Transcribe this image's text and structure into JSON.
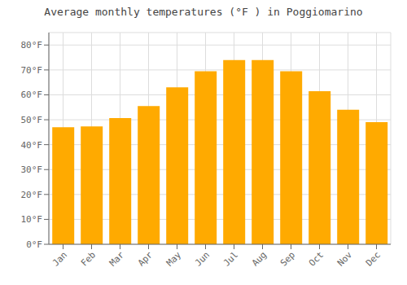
{
  "chart_data": {
    "type": "bar",
    "title": "Average monthly temperatures (°F ) in Poggiomarino",
    "categories": [
      "Jan",
      "Feb",
      "Mar",
      "Apr",
      "May",
      "Jun",
      "Jul",
      "Aug",
      "Sep",
      "Oct",
      "Nov",
      "Dec"
    ],
    "values": [
      47,
      47.3,
      50.7,
      55.5,
      63,
      69.5,
      74,
      74,
      69.5,
      61.5,
      54,
      49
    ],
    "color": "#FFAA00",
    "ylim": [
      0,
      85
    ],
    "yticks": [
      {
        "value": 0,
        "label": "0°F"
      },
      {
        "value": 10,
        "label": "10°F"
      },
      {
        "value": 20,
        "label": "20°F"
      },
      {
        "value": 30,
        "label": "30°F"
      },
      {
        "value": 40,
        "label": "40°F"
      },
      {
        "value": 50,
        "label": "50°F"
      },
      {
        "value": 60,
        "label": "60°F"
      },
      {
        "value": 70,
        "label": "70°F"
      },
      {
        "value": 80,
        "label": "80°F"
      }
    ],
    "grid": true
  }
}
